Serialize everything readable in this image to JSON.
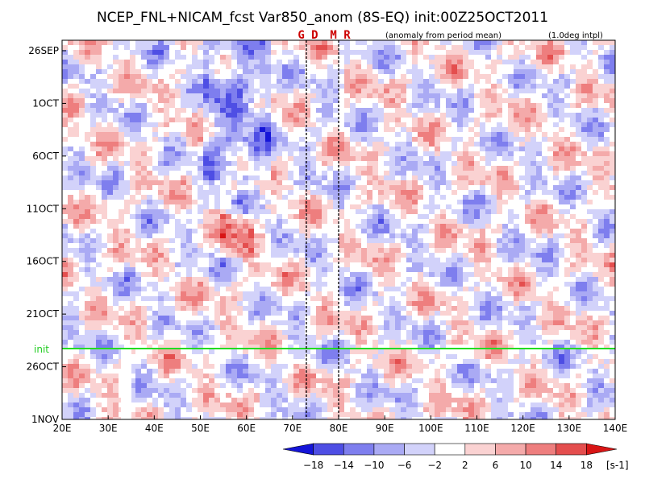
{
  "chart_data": {
    "type": "heatmap",
    "title": "NCEP_FNL+NICAM_fcst Var850_anom (8S-EQ) init:00Z25OCT2011",
    "subtitle_left": "(anomaly from period mean)",
    "subtitle_right": "(1.0deg intpl)",
    "x_ticks": [
      "20E",
      "30E",
      "40E",
      "50E",
      "60E",
      "70E",
      "80E",
      "90E",
      "100E",
      "110E",
      "120E",
      "130E",
      "140E"
    ],
    "x_range": [
      20,
      140
    ],
    "y_ticks": [
      "26SEP",
      "1OCT",
      "6OCT",
      "11OCT",
      "16OCT",
      "21OCT",
      "26OCT",
      "1NOV"
    ],
    "init_label": "init",
    "markers": [
      {
        "label": "G D",
        "lon": 73
      },
      {
        "label": "M R",
        "lon": 80
      }
    ],
    "colorbar": {
      "ticks": [
        "-18",
        "-14",
        "-10",
        "-6",
        "-2",
        "2",
        "6",
        "10",
        "14",
        "18"
      ],
      "unit": "[s-1]",
      "colors": [
        "#1515d8",
        "#4e4ee4",
        "#7e7eee",
        "#aaaaf4",
        "#d2d2fa",
        "#ffffff",
        "#fad2d2",
        "#f4aaaa",
        "#ee7e7e",
        "#e44e4e",
        "#d81515"
      ]
    }
  }
}
